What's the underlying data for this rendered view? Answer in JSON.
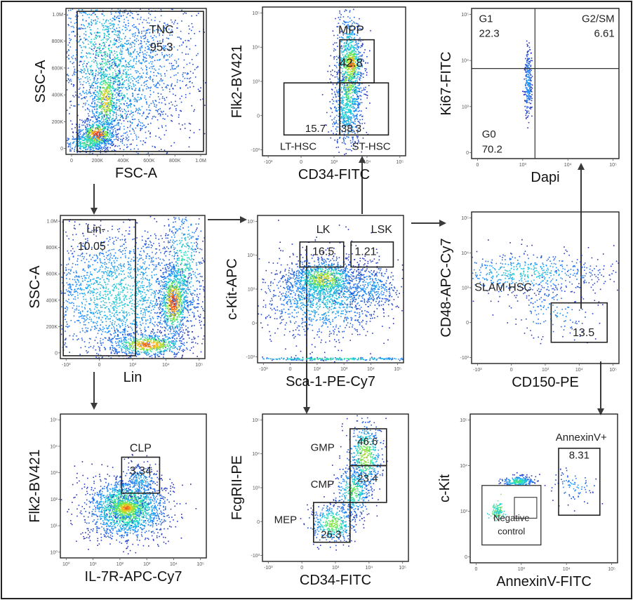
{
  "chart_data": [
    {
      "type": "scatter",
      "id": "fsc-ssc",
      "xlabel": "FSC-A",
      "ylabel": "SSC-A",
      "xticks": [
        "0",
        "200K",
        "400K",
        "600K",
        "800K",
        "1.0M"
      ],
      "yticks": [
        "0",
        "200K",
        "400K",
        "600K",
        "800K",
        "1.0M"
      ],
      "gates": [
        {
          "name": "TNC",
          "value": "95.3"
        }
      ]
    },
    {
      "type": "scatter",
      "id": "cd34-flk2-lsk",
      "xlabel": "CD34-FITC",
      "ylabel": "Flk2-BV421",
      "xticks": [
        "-10³",
        "0",
        "10³",
        "10⁴",
        "10⁵"
      ],
      "yticks": [
        "-10³",
        "0",
        "10³",
        "10⁴",
        "10⁵"
      ],
      "gates": [
        {
          "name": "MPP",
          "value": "42.8"
        },
        {
          "name": "LT-HSC",
          "value": "15.7"
        },
        {
          "name": "ST-HSC",
          "value": "38.3"
        }
      ]
    },
    {
      "type": "scatter",
      "id": "dapi-ki67",
      "xlabel": "Dapi",
      "ylabel": "Ki67-FITC",
      "xticks": [
        "0",
        "10³",
        "10⁴",
        "10⁵"
      ],
      "yticks": [
        "0",
        "10³",
        "10⁴",
        "10⁵"
      ],
      "gates": [
        {
          "name": "G1",
          "value": "22.3"
        },
        {
          "name": "G2/SM",
          "value": "6.61"
        },
        {
          "name": "G0",
          "value": "70.2"
        }
      ]
    },
    {
      "type": "scatter",
      "id": "lin-ssc",
      "xlabel": "Lin",
      "ylabel": "SSC-A",
      "xticks": [
        "-10³",
        "0",
        "10³",
        "10⁴",
        "10⁵"
      ],
      "yticks": [
        "0",
        "200K",
        "400K",
        "600K",
        "800K",
        "1.0M"
      ],
      "gates": [
        {
          "name": "Lin-",
          "value": "10.05"
        }
      ]
    },
    {
      "type": "scatter",
      "id": "sca1-ckit",
      "xlabel": "Sca-1-PE-Cy7",
      "ylabel": "c-Kit-APC",
      "xticks": [
        "-10²",
        "0",
        "10²",
        "10³",
        "10⁴",
        "10⁵"
      ],
      "yticks": [
        "-10³",
        "0",
        "10³",
        "10⁴",
        "10⁵"
      ],
      "gates": [
        {
          "name": "LK",
          "value": "16.5"
        },
        {
          "name": "LSK",
          "value": "1.21"
        }
      ]
    },
    {
      "type": "scatter",
      "id": "cd150-cd48",
      "xlabel": "CD150-PE",
      "ylabel": "CD48-APC-Cy7",
      "xticks": [
        "-10³",
        "0",
        "10³",
        "10⁴",
        "10⁵"
      ],
      "yticks": [
        "-10³",
        "0",
        "10³",
        "10⁴",
        "10⁵"
      ],
      "gates": [
        {
          "name": "SLAM HSC",
          "value": "13.5"
        }
      ]
    },
    {
      "type": "scatter",
      "id": "il7r-flk2",
      "xlabel": "IL-7R-APC-Cy7",
      "ylabel": "Flk2-BV421",
      "xticks": [
        "10⁰",
        "10¹",
        "10²",
        "10³",
        "10⁴",
        "10⁵"
      ],
      "yticks": [
        "10⁰",
        "10¹",
        "10²",
        "10³",
        "10⁴",
        "10⁵"
      ],
      "gates": [
        {
          "name": "CLP",
          "value": "3.34"
        }
      ]
    },
    {
      "type": "scatter",
      "id": "cd34-fcgr",
      "xlabel": "CD34-FITC",
      "ylabel": "FcgRII-PE",
      "xticks": [
        "-10³",
        "0",
        "10³",
        "10⁴",
        "10⁵"
      ],
      "yticks": [
        "-10³",
        "0",
        "10³",
        "10⁴",
        "10⁵"
      ],
      "gates": [
        {
          "name": "GMP",
          "value": "46.6"
        },
        {
          "name": "CMP",
          "value": "23.4"
        },
        {
          "name": "MEP",
          "value": "26.3"
        }
      ]
    },
    {
      "type": "scatter",
      "id": "annexin-ckit",
      "xlabel": "AnnexinV-FITC",
      "ylabel": "c-Kit",
      "xticks": [
        "0",
        "10³",
        "10⁴",
        "10⁵"
      ],
      "yticks": [
        "0",
        "10³",
        "10⁴",
        "10⁵"
      ],
      "gates": [
        {
          "name": "AnnexinV+",
          "value": "8.31"
        }
      ],
      "inset_label": [
        "Negative",
        "control"
      ]
    }
  ]
}
